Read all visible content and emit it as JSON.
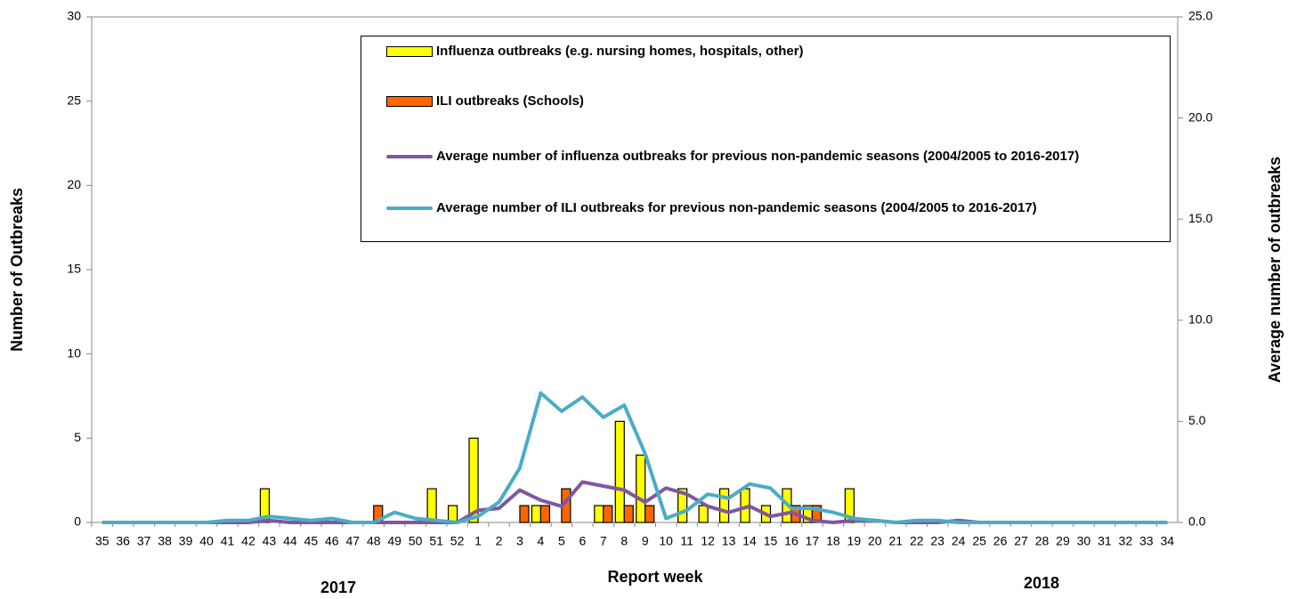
{
  "chart_data": {
    "type": "bar-line",
    "x_label": "Report week",
    "y_label": "Number of Outbreaks",
    "y2_label": "Average number of outbreaks",
    "year_labels": [
      "2017",
      "2018"
    ],
    "categories": [
      "35",
      "36",
      "37",
      "38",
      "39",
      "40",
      "41",
      "42",
      "43",
      "44",
      "45",
      "46",
      "47",
      "48",
      "49",
      "50",
      "51",
      "52",
      "1",
      "2",
      "3",
      "4",
      "5",
      "6",
      "7",
      "8",
      "9",
      "10",
      "11",
      "12",
      "13",
      "14",
      "15",
      "16",
      "17",
      "18",
      "19",
      "20",
      "21",
      "22",
      "23",
      "24",
      "25",
      "26",
      "27",
      "28",
      "29",
      "30",
      "31",
      "32",
      "33",
      "34"
    ],
    "ylim": [
      0,
      30
    ],
    "yticks": [
      0,
      5,
      10,
      15,
      20,
      25,
      30
    ],
    "y2lim": [
      0,
      25
    ],
    "y2ticks": [
      {
        "value": 0,
        "label": "0.0"
      },
      {
        "value": 5,
        "label": "5.0"
      },
      {
        "value": 10,
        "label": "10.0"
      },
      {
        "value": 15,
        "label": "15.0"
      },
      {
        "value": 20,
        "label": "20.0"
      },
      {
        "value": 25,
        "label": "25.0"
      }
    ],
    "series": [
      {
        "name": "Influenza outbreaks (e.g. nursing homes, hospitals, other)",
        "kind": "bar",
        "color": "#ffff00",
        "values": [
          0,
          0,
          0,
          0,
          0,
          0,
          0,
          0,
          2,
          0,
          0,
          0,
          0,
          0,
          0,
          0,
          2,
          1,
          5,
          0,
          0,
          1,
          0,
          0,
          1,
          6,
          4,
          0,
          2,
          1,
          2,
          2,
          1,
          2,
          1,
          0,
          2,
          0,
          0,
          0,
          0,
          0,
          0,
          0,
          0,
          0,
          0,
          0,
          0,
          0,
          0,
          0
        ]
      },
      {
        "name": "ILI outbreaks (Schools)",
        "kind": "bar",
        "color": "#ff6600",
        "values": [
          0,
          0,
          0,
          0,
          0,
          0,
          0,
          0,
          0,
          0,
          0,
          0,
          0,
          1,
          0,
          0,
          0,
          0,
          0,
          0,
          1,
          1,
          2,
          0,
          1,
          1,
          1,
          0,
          0,
          0,
          0,
          0,
          0,
          1,
          1,
          0,
          0,
          0,
          0,
          0,
          0,
          0,
          0,
          0,
          0,
          0,
          0,
          0,
          0,
          0,
          0,
          0
        ]
      },
      {
        "name": "Average number of influenza outbreaks for previous non-pandemic seasons (2004/2005 to 2016-2017)",
        "kind": "line",
        "axis": "y2",
        "color": "#7e57a0",
        "values": [
          0,
          0,
          0,
          0,
          0,
          0,
          0,
          0,
          0.1,
          0,
          0,
          0,
          0,
          0,
          0,
          0,
          0,
          0,
          0.6,
          0.7,
          1.6,
          1.1,
          0.8,
          2.0,
          1.8,
          1.6,
          1.0,
          1.7,
          1.4,
          0.8,
          0.5,
          0.8,
          0.3,
          0.5,
          0.1,
          0,
          0.1,
          0.1,
          0,
          0,
          0,
          0.1,
          0,
          0,
          0,
          0,
          0,
          0,
          0,
          0,
          0,
          0
        ]
      },
      {
        "name": "Average number of ILI outbreaks for previous non-pandemic seasons (2004/2005 to 2016-2017)",
        "kind": "line",
        "axis": "y2",
        "color": "#4bacc6",
        "values": [
          0,
          0,
          0,
          0,
          0,
          0,
          0.1,
          0.1,
          0.3,
          0.2,
          0.1,
          0.2,
          0,
          0,
          0.5,
          0.2,
          0.1,
          0,
          0.3,
          1.0,
          2.7,
          6.4,
          5.5,
          6.2,
          5.2,
          5.8,
          3.4,
          0.2,
          0.6,
          1.4,
          1.2,
          1.9,
          1.7,
          0.7,
          0.7,
          0.5,
          0.2,
          0.1,
          0,
          0.1,
          0.1,
          0,
          0,
          0,
          0,
          0,
          0,
          0,
          0,
          0,
          0,
          0
        ]
      }
    ]
  }
}
